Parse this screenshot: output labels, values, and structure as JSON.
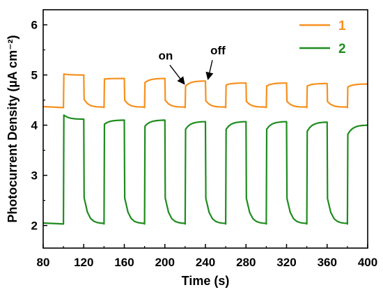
{
  "chart_data": {
    "type": "line",
    "xlabel": "Time (s)",
    "ylabel": "Photocurrent Density (µA cm⁻²)",
    "xlim": [
      80,
      400
    ],
    "ylim": [
      1.55,
      6.3
    ],
    "x_ticks": [
      80,
      120,
      160,
      200,
      240,
      280,
      320,
      360,
      400
    ],
    "y_ticks": [
      2,
      3,
      4,
      5,
      6
    ],
    "grid": false,
    "legend_position": "top-right",
    "on_off_period_s": 40,
    "on_times_s": [
      100,
      140,
      180,
      220,
      260,
      300,
      340,
      380
    ],
    "off_times_s": [
      120,
      160,
      200,
      240,
      280,
      320,
      360
    ],
    "series": [
      {
        "name": "1",
        "color": "#f7901e",
        "dark_level": 4.35,
        "cycles": [
          {
            "on": 100,
            "off": 120,
            "rise_to": 5.02,
            "end": 5.0
          },
          {
            "on": 140,
            "off": 160,
            "rise_to": 4.92,
            "end": 4.93
          },
          {
            "on": 180,
            "off": 200,
            "rise_to": 4.85,
            "end": 4.93
          },
          {
            "on": 220,
            "off": 240,
            "rise_to": 4.78,
            "end": 4.88
          },
          {
            "on": 260,
            "off": 280,
            "rise_to": 4.8,
            "end": 4.84
          },
          {
            "on": 300,
            "off": 320,
            "rise_to": 4.78,
            "end": 4.84
          },
          {
            "on": 340,
            "off": 360,
            "rise_to": 4.78,
            "end": 4.83
          },
          {
            "on": 380,
            "off": 400,
            "rise_to": 4.76,
            "end": 4.82
          }
        ]
      },
      {
        "name": "2",
        "color": "#1e8c1e",
        "dark_level": 2.03,
        "cycles": [
          {
            "on": 100,
            "off": 120,
            "rise_to": 4.2,
            "end": 4.12
          },
          {
            "on": 140,
            "off": 160,
            "rise_to": 4.02,
            "end": 4.1
          },
          {
            "on": 180,
            "off": 200,
            "rise_to": 3.98,
            "end": 4.1
          },
          {
            "on": 220,
            "off": 240,
            "rise_to": 3.92,
            "end": 4.07
          },
          {
            "on": 260,
            "off": 280,
            "rise_to": 3.92,
            "end": 4.07
          },
          {
            "on": 300,
            "off": 320,
            "rise_to": 3.92,
            "end": 4.07
          },
          {
            "on": 340,
            "off": 360,
            "rise_to": 3.88,
            "end": 4.06
          },
          {
            "on": 380,
            "off": 400,
            "rise_to": 3.82,
            "end": 4.0
          }
        ]
      }
    ],
    "annotations": [
      {
        "text": "on",
        "x": 220,
        "y": 4.78
      },
      {
        "text": "off",
        "x": 240,
        "y": 4.88
      }
    ]
  }
}
